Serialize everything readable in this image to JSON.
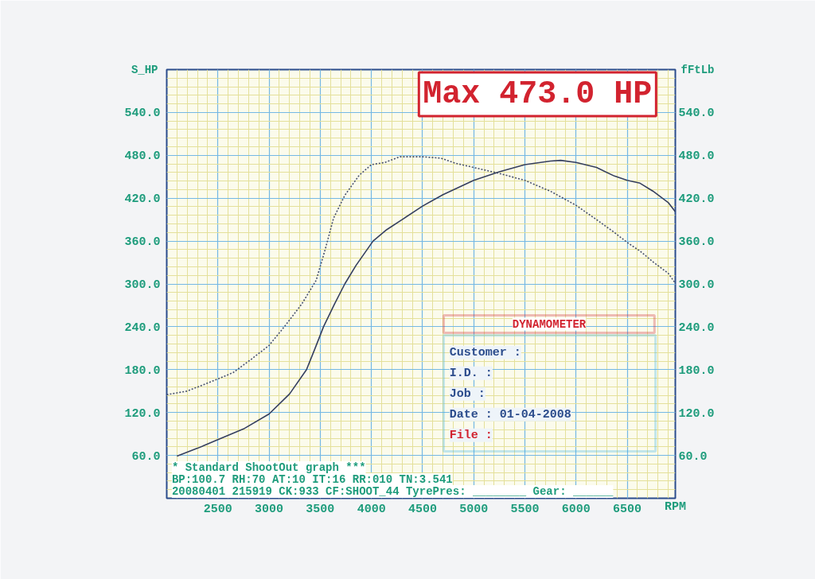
{
  "chart_data": {
    "type": "line",
    "xlabel": "RPM",
    "ylabel": "S_HP",
    "y2label": "fFtLb",
    "xlim": [
      2000,
      6970
    ],
    "xticks": [
      2500,
      3000,
      3500,
      4000,
      4500,
      5000,
      5500,
      6000,
      6500
    ],
    "ylim": [
      0,
      600
    ],
    "yticks": [
      {
        "value": 60,
        "label": "60.0"
      },
      {
        "value": 120,
        "label": "120.0"
      },
      {
        "value": 180,
        "label": "180.0"
      },
      {
        "value": 240,
        "label": "240.0"
      },
      {
        "value": 300,
        "label": "300.0"
      },
      {
        "value": 360,
        "label": "360.0"
      },
      {
        "value": 420,
        "label": "420.0"
      },
      {
        "value": 480,
        "label": "480.0"
      },
      {
        "value": 540,
        "label": "540.0"
      }
    ],
    "y2lim": [
      0,
      600
    ],
    "y2ticks": [
      {
        "value": 60,
        "label": "60.0"
      },
      {
        "value": 120,
        "label": "120.0"
      },
      {
        "value": 180,
        "label": "180.0"
      },
      {
        "value": 240,
        "label": "240.0"
      },
      {
        "value": 300,
        "label": "300.0"
      },
      {
        "value": 360,
        "label": "360.0"
      },
      {
        "value": 420,
        "label": "420.0"
      },
      {
        "value": 480,
        "label": "480.0"
      },
      {
        "value": 540,
        "label": "540.0"
      }
    ],
    "grid": true,
    "series": [
      {
        "color": "#353f5f",
        "line_style": "solid",
        "x": [
          2100,
          2300,
          2500,
          2750,
          3000,
          3200,
          3366,
          3450,
          3532,
          3640,
          3740,
          3850,
          4016,
          4150,
          4300,
          4500,
          4700,
          4850,
          5000,
          5250,
          5500,
          5750,
          5850,
          6000,
          6200,
          6375,
          6500,
          6625,
          6750,
          6900,
          6970
        ],
        "values": [
          59,
          70,
          82,
          97,
          118,
          146,
          180,
          210,
          240,
          272,
          300,
          326,
          360,
          376,
          390,
          409,
          425,
          435,
          445,
          457,
          467,
          472,
          473,
          470,
          463,
          451,
          445,
          441,
          430,
          414,
          401
        ]
      },
      {
        "color": "#46506e",
        "line_style": "dotted",
        "x": [
          2000,
          2200,
          2500,
          2650,
          2830,
          3000,
          3160,
          3320,
          3460,
          3550,
          3630,
          3740,
          3880,
          4000,
          4130,
          4280,
          4500,
          4680,
          4820,
          5000,
          5240,
          5500,
          5760,
          6000,
          6200,
          6375,
          6500,
          6625,
          6760,
          6900,
          6970
        ],
        "values": [
          145,
          150,
          167,
          176,
          195,
          214,
          242,
          272,
          305,
          349,
          392,
          424,
          452,
          467,
          470,
          478,
          478,
          476,
          469,
          463,
          455,
          445,
          429,
          410,
          390,
          372,
          358,
          346,
          330,
          315,
          301
        ]
      }
    ],
    "annotations": [
      "Max 473.0 HP",
      "* Standard ShootOut graph ***",
      "BP:100.7 RH:70 AT:10 IT:16 RR:010 TN:3.541",
      "20080401 215919 CK:933 CF:SHOOT_44 TyrePres: ________ Gear: ______",
      "DYNAMOMETER",
      "Customer :",
      "I.D. :",
      "Job :",
      "Date : 01-04-2008",
      "File :"
    ]
  }
}
